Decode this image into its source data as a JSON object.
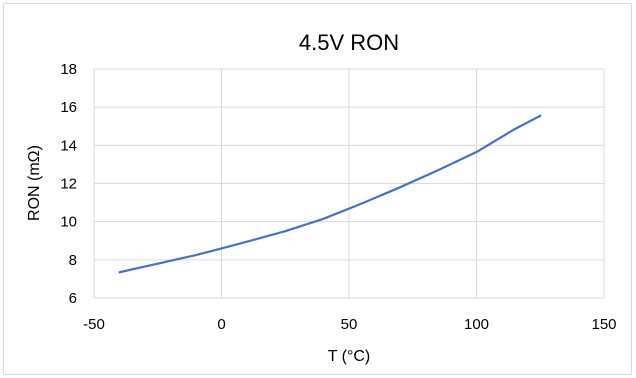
{
  "chart_data": {
    "type": "line",
    "title": "4.5V RON",
    "xlabel": "T (°C)",
    "ylabel": "RON (mΩ)",
    "xlim": [
      -50,
      150
    ],
    "ylim": [
      6,
      18
    ],
    "x_ticks": [
      -50,
      0,
      50,
      100,
      150
    ],
    "y_ticks": [
      6,
      8,
      10,
      12,
      14,
      16,
      18
    ],
    "grid": true,
    "legend": "none",
    "series": [
      {
        "color": "#4472c4",
        "x": [
          -40,
          -25,
          -10,
          0,
          10,
          25,
          40,
          55,
          70,
          85,
          100,
          115,
          125
        ],
        "y": [
          7.35,
          7.8,
          8.25,
          8.6,
          8.95,
          9.5,
          10.15,
          10.95,
          11.8,
          12.7,
          13.65,
          14.85,
          15.55
        ]
      }
    ]
  }
}
